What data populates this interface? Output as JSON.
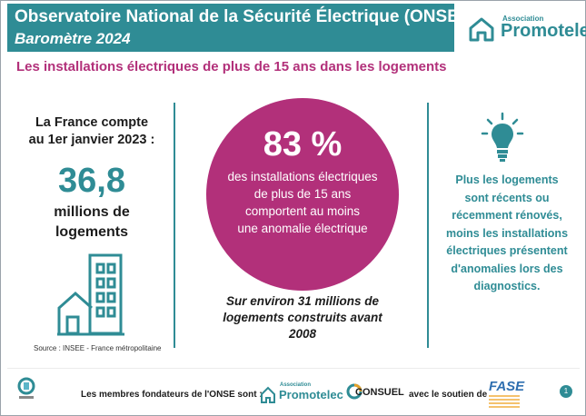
{
  "header": {
    "title": "Observatoire National de la Sécurité Électrique (ONSE)",
    "subtitle": "Baromètre  2024"
  },
  "logo_top": {
    "small": "Association",
    "name": "Promotelec"
  },
  "section_title": "Les installations électriques de plus de 15 ans dans les logements",
  "left": {
    "intro_line1": "La France compte",
    "intro_line2": "au 1er janvier 2023 :",
    "number": "36,8",
    "unit_line1": "millions de",
    "unit_line2": "logements",
    "source": "Source : INSEE - France métropolitaine"
  },
  "center": {
    "percent": "83 %",
    "line1": "des installations électriques",
    "line2": "de plus de 15 ans",
    "line3": "comportent au moins",
    "line4": "une anomalie électrique",
    "note_line1": "Sur environ 31 millions de",
    "note_line2": "logements construits avant",
    "note_line3": "2008"
  },
  "right": {
    "line1": "Plus les logements",
    "line2": "sont récents ou",
    "line3": "récemment rénovés,",
    "line4": "moins les installations",
    "line5": "électriques présentent",
    "line6": "d'anomalies lors des",
    "line7": "diagnostics."
  },
  "footer": {
    "members": "Les membres fondateurs de l'ONSE sont :",
    "promo_small": "Association",
    "promo_name": "Promotelec",
    "consuel": "CONSUEL",
    "soutien": "avec le soutien de",
    "fase": "FASE",
    "page": "1"
  },
  "colors": {
    "teal": "#2f8c95",
    "magenta": "#b2307a"
  }
}
